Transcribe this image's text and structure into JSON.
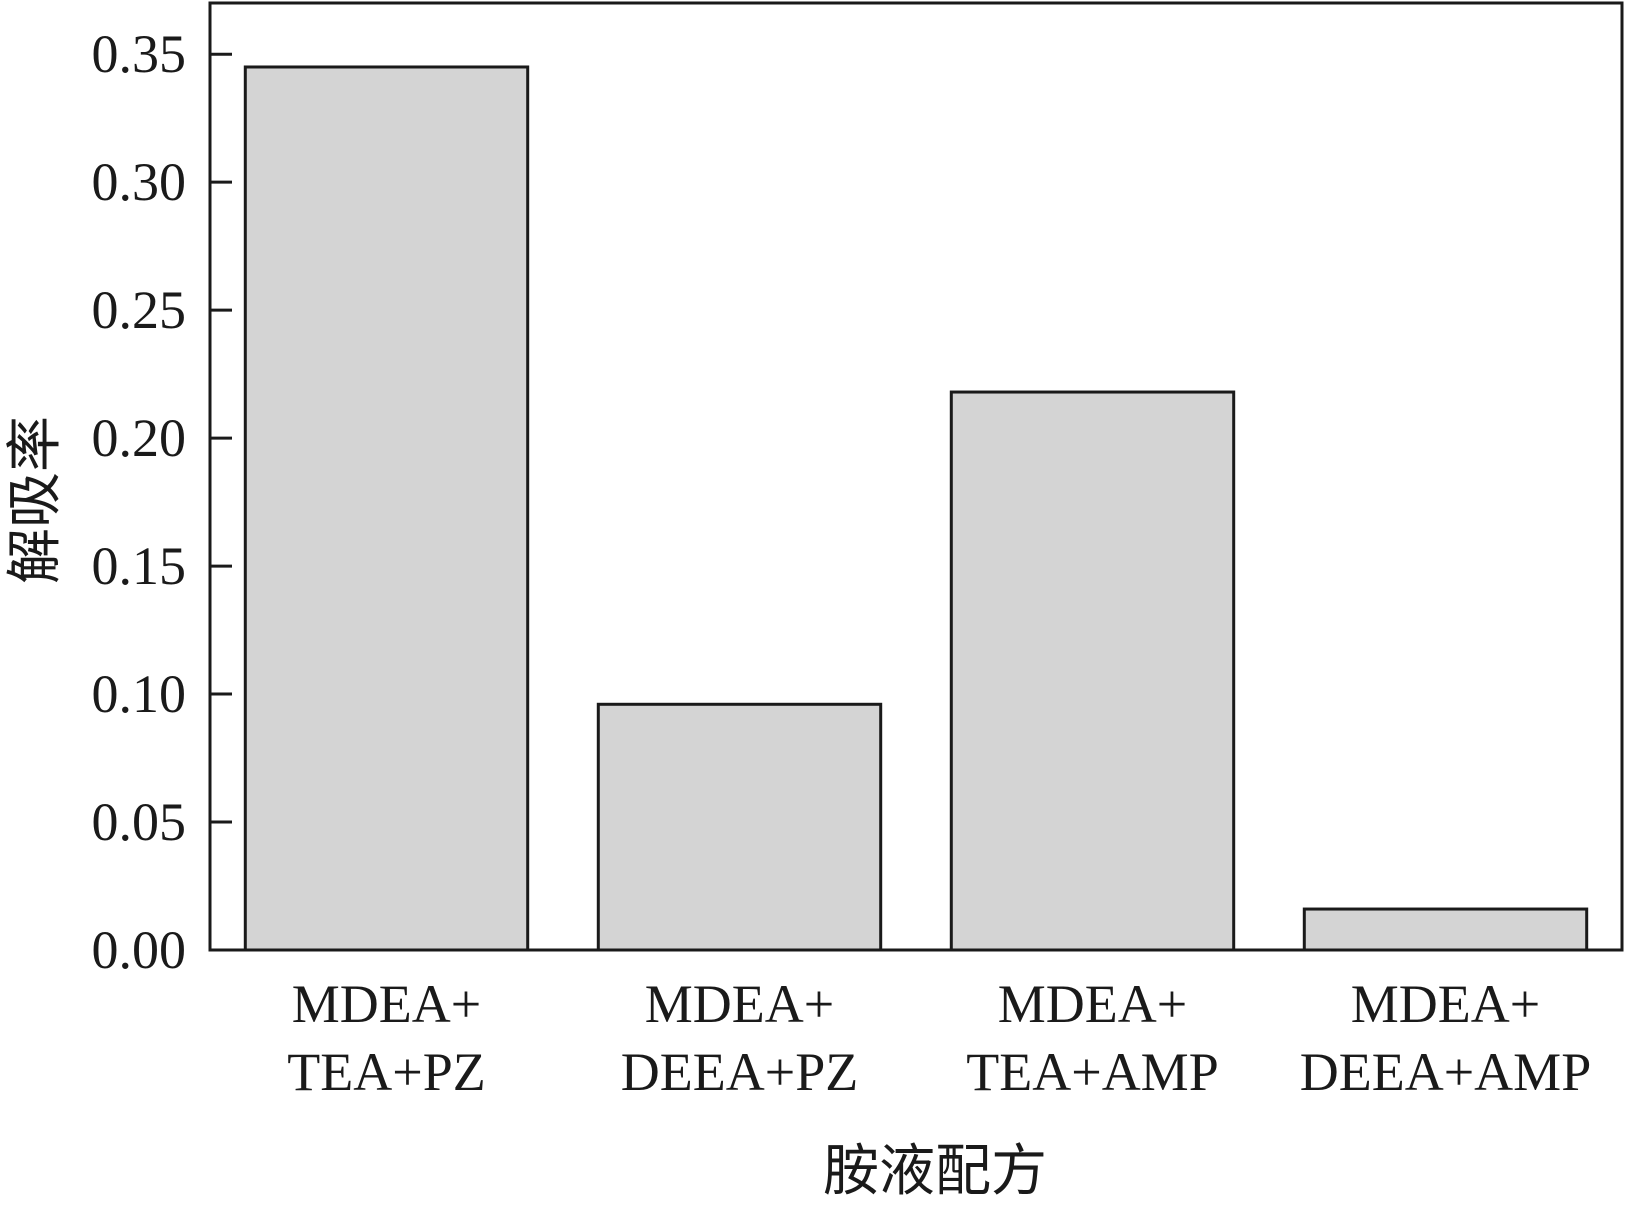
{
  "chart_data": {
    "type": "bar",
    "title": "",
    "xlabel": "胺液配方",
    "ylabel": "解吸率",
    "ylim": [
      0,
      0.37
    ],
    "yticks": [
      "0.00",
      "0.05",
      "0.10",
      "0.15",
      "0.20",
      "0.25",
      "0.30",
      "0.35"
    ],
    "categories": [
      {
        "line1": "MDEA+",
        "line2": "TEA+PZ"
      },
      {
        "line1": "MDEA+",
        "line2": "DEEA+PZ"
      },
      {
        "line1": "MDEA+",
        "line2": "TEA+AMP"
      },
      {
        "line1": "MDEA+",
        "line2": "DEEA+AMP"
      }
    ],
    "values": [
      0.345,
      0.096,
      0.218,
      0.016
    ],
    "grid": false,
    "bar_color": "#d4d4d4",
    "edge_color": "#1a1a1a"
  }
}
